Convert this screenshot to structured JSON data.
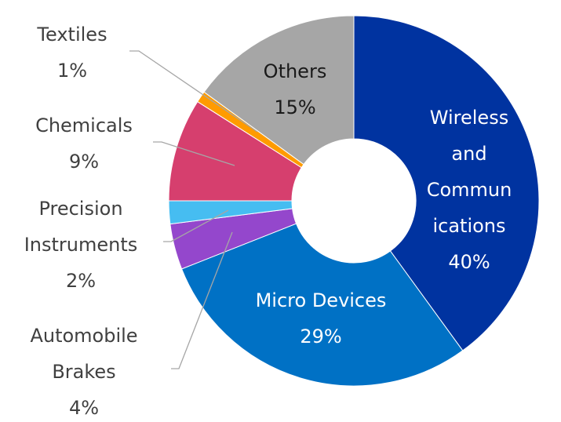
{
  "chart_data": {
    "type": "pie",
    "variant": "donut",
    "title": "",
    "unit": "%",
    "slices": [
      {
        "name": "Wireless and Communications",
        "label_lines": [
          "Wireless",
          "and",
          "Commun",
          "ications"
        ],
        "value": 40,
        "value_label": "40%",
        "color": "#0033a0",
        "label_position": "inside"
      },
      {
        "name": "Micro Devices",
        "label_lines": [
          "Micro Devices"
        ],
        "value": 29,
        "value_label": "29%",
        "color": "#0071c5",
        "label_position": "inside"
      },
      {
        "name": "Automobile Brakes",
        "label_lines": [
          "Automobile",
          "Brakes"
        ],
        "value": 4,
        "value_label": "4%",
        "color": "#9447cc",
        "label_position": "outside"
      },
      {
        "name": "Precision Instruments",
        "label_lines": [
          "Precision",
          "Instruments"
        ],
        "value": 2,
        "value_label": "2%",
        "color": "#46bdf1",
        "label_position": "outside"
      },
      {
        "name": "Chemicals",
        "label_lines": [
          "Chemicals"
        ],
        "value": 9,
        "value_label": "9%",
        "color": "#d63f6e",
        "label_position": "outside"
      },
      {
        "name": "Textiles",
        "label_lines": [
          "Textiles"
        ],
        "value": 1,
        "value_label": "1%",
        "color": "#ff9b00",
        "label_position": "outside"
      },
      {
        "name": "Others",
        "label_lines": [
          "Others"
        ],
        "value": 15,
        "value_label": "15%",
        "color": "#a6a6a6",
        "label_position": "inside"
      }
    ]
  }
}
